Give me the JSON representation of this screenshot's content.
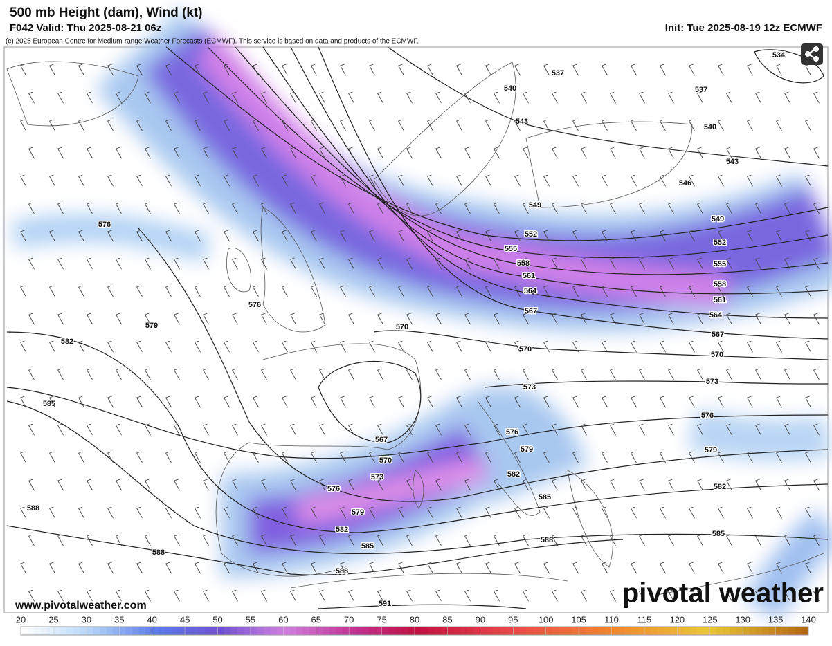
{
  "header": {
    "title": "500 mb Height (dam), Wind (kt)",
    "valid": "F042 Valid: Thu 2025-08-21 06z",
    "init": "Init: Tue 2025-08-19 12z ECMWF",
    "credit": "(c) 2025 European Centre for Medium-range Weather Forecasts (ECMWF). This service is based on data and products of the ECMWF."
  },
  "map": {
    "contour_labels": [
      534,
      537,
      537,
      540,
      540,
      543,
      543,
      546,
      549,
      549,
      552,
      552,
      555,
      555,
      558,
      558,
      561,
      561,
      564,
      564,
      567,
      567,
      570,
      570,
      570,
      573,
      573,
      576,
      576,
      576,
      576,
      579,
      579,
      579,
      582,
      582,
      582,
      585,
      585,
      585,
      588,
      588,
      588,
      588,
      591,
      567,
      570,
      573,
      576,
      579,
      582,
      585
    ]
  },
  "footer": {
    "url": "www.pivotalweather.com",
    "logo": "pivotal weather"
  },
  "colorbar": {
    "range": [
      20,
      140
    ],
    "ticks": [
      20,
      25,
      30,
      35,
      40,
      45,
      50,
      55,
      60,
      65,
      70,
      75,
      80,
      85,
      90,
      95,
      100,
      105,
      110,
      115,
      120,
      125,
      130,
      135,
      140
    ]
  }
}
